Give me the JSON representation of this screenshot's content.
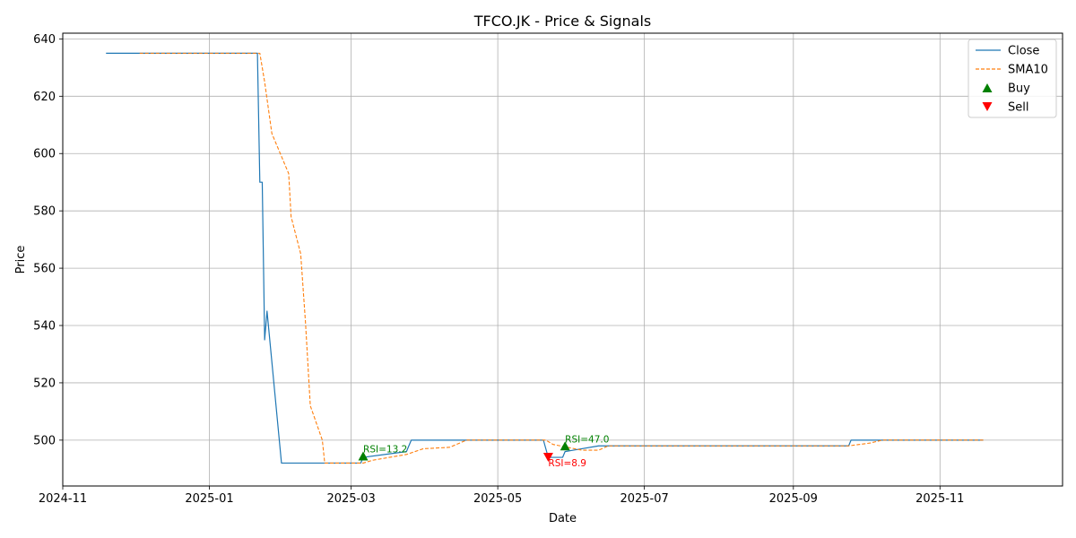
{
  "chart_data": {
    "type": "line",
    "title": "TFCO.JK - Price & Signals",
    "xlabel": "Date",
    "ylabel": "Price",
    "grid": true,
    "legend_position": "top-right",
    "xlim": [
      "2024-11-01",
      "2025-12-22"
    ],
    "ylim": [
      484,
      642
    ],
    "x_ticks": [
      "2024-11",
      "2025-01",
      "2025-03",
      "2025-05",
      "2025-07",
      "2025-09",
      "2025-11"
    ],
    "y_ticks": [
      500,
      520,
      540,
      560,
      580,
      600,
      620,
      640
    ],
    "series": [
      {
        "name": "Close",
        "style": "solid",
        "color": "#1f77b4",
        "points": [
          [
            "2024-11-19",
            635
          ],
          [
            "2025-01-21",
            635
          ],
          [
            "2025-01-22",
            590
          ],
          [
            "2025-01-23",
            590
          ],
          [
            "2025-01-24",
            535
          ],
          [
            "2025-01-25",
            545
          ],
          [
            "2025-01-31",
            492
          ],
          [
            "2025-03-05",
            492
          ],
          [
            "2025-03-06",
            494
          ],
          [
            "2025-03-24",
            496
          ],
          [
            "2025-03-26",
            500
          ],
          [
            "2025-05-20",
            500
          ],
          [
            "2025-05-22",
            494
          ],
          [
            "2025-05-28",
            494
          ],
          [
            "2025-05-29",
            496
          ],
          [
            "2025-06-12",
            498
          ],
          [
            "2025-09-24",
            498
          ],
          [
            "2025-09-25",
            500
          ],
          [
            "2025-11-19",
            500
          ]
        ]
      },
      {
        "name": "SMA10",
        "style": "dashed",
        "color": "#ff7f0e",
        "points": [
          [
            "2024-12-03",
            635
          ],
          [
            "2025-01-22",
            635
          ],
          [
            "2025-01-24",
            625
          ],
          [
            "2025-01-27",
            607
          ],
          [
            "2025-02-03",
            593
          ],
          [
            "2025-02-04",
            578
          ],
          [
            "2025-02-08",
            565
          ],
          [
            "2025-02-10",
            541
          ],
          [
            "2025-02-12",
            512
          ],
          [
            "2025-02-17",
            500
          ],
          [
            "2025-02-18",
            492
          ],
          [
            "2025-03-06",
            492
          ],
          [
            "2025-03-10",
            493
          ],
          [
            "2025-03-24",
            495
          ],
          [
            "2025-03-31",
            497
          ],
          [
            "2025-04-11",
            497.5
          ],
          [
            "2025-04-18",
            500
          ],
          [
            "2025-05-21",
            500
          ],
          [
            "2025-05-24",
            498.5
          ],
          [
            "2025-06-05",
            496.5
          ],
          [
            "2025-06-12",
            496.5
          ],
          [
            "2025-06-16",
            498
          ],
          [
            "2025-09-24",
            498
          ],
          [
            "2025-10-03",
            499
          ],
          [
            "2025-10-08",
            500
          ],
          [
            "2025-11-19",
            500
          ]
        ]
      }
    ],
    "markers": [
      {
        "name": "Buy",
        "color": "#008000",
        "symbol": "triangle-up",
        "points": [
          [
            "2025-03-06",
            494.5
          ],
          [
            "2025-05-29",
            498
          ]
        ]
      },
      {
        "name": "Sell",
        "color": "#ff0000",
        "symbol": "triangle-down",
        "points": [
          [
            "2025-05-22",
            494
          ]
        ]
      }
    ],
    "annotations": [
      {
        "text": "RSI=13.2",
        "x": "2025-03-06",
        "y": 494.5,
        "color": "#008000"
      },
      {
        "text": "RSI=47.0",
        "x": "2025-05-29",
        "y": 498,
        "color": "#008000"
      },
      {
        "text": "RSI=8.9",
        "x": "2025-05-22",
        "y": 494,
        "color": "#ff0000"
      }
    ]
  }
}
